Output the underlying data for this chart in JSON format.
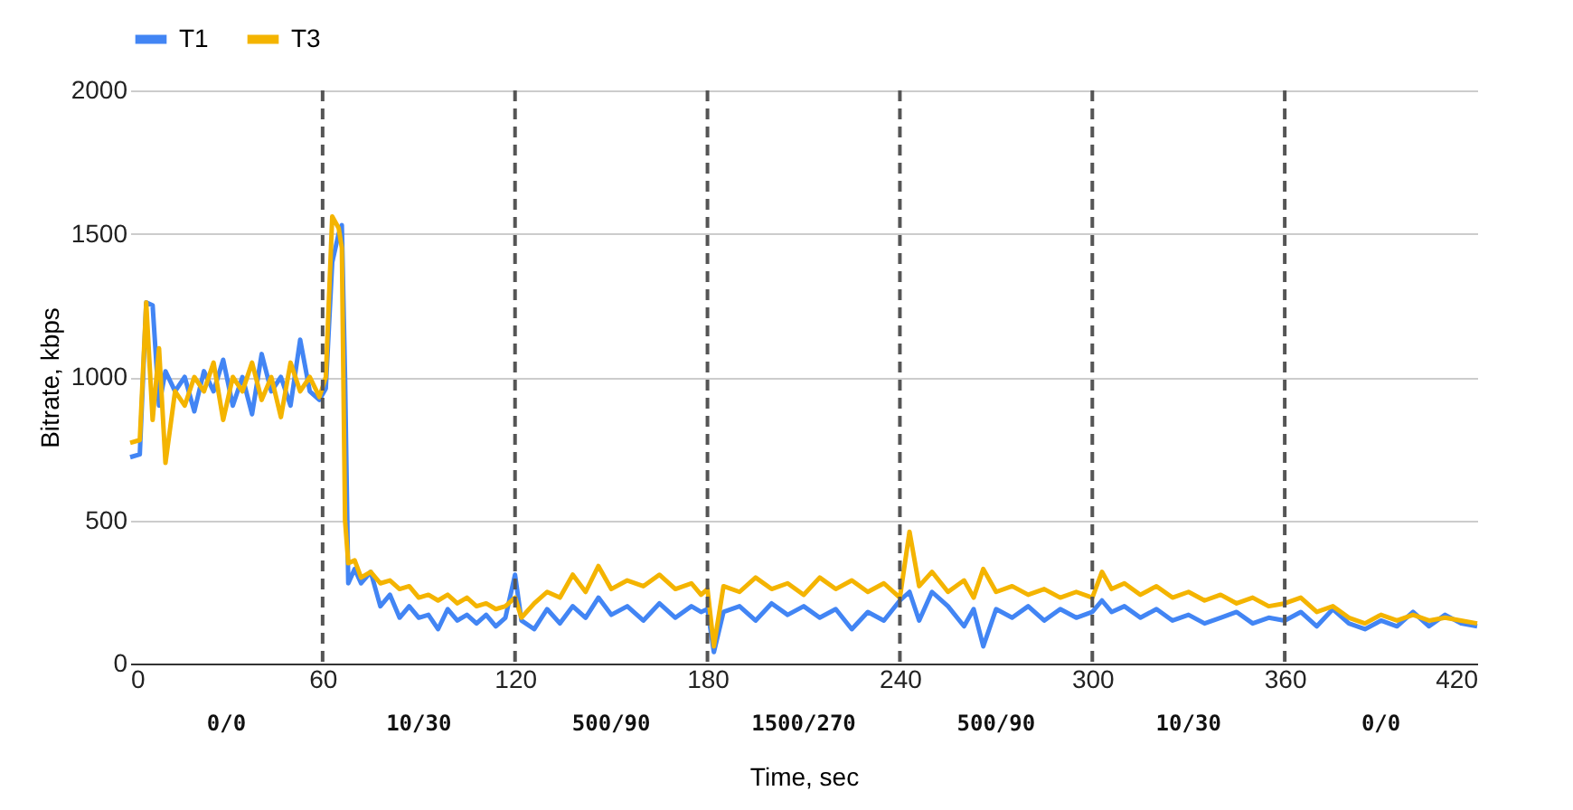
{
  "chart_data": {
    "type": "line",
    "xlabel": "Time, sec",
    "ylabel": "Bitrate, kbps",
    "x": [
      0,
      3,
      5,
      7,
      9,
      11,
      14,
      17,
      20,
      23,
      26,
      29,
      32,
      35,
      38,
      41,
      44,
      47,
      50,
      53,
      56,
      59,
      61,
      63,
      65,
      66,
      67,
      68,
      70,
      72,
      75,
      78,
      81,
      84,
      87,
      90,
      93,
      96,
      99,
      102,
      105,
      108,
      111,
      114,
      117,
      120,
      122,
      126,
      130,
      134,
      138,
      142,
      146,
      150,
      155,
      160,
      165,
      170,
      175,
      178,
      180,
      182,
      185,
      190,
      195,
      200,
      205,
      210,
      215,
      220,
      225,
      230,
      235,
      240,
      243,
      246,
      250,
      255,
      260,
      263,
      266,
      270,
      275,
      280,
      285,
      290,
      295,
      300,
      303,
      306,
      310,
      315,
      320,
      325,
      330,
      335,
      340,
      345,
      350,
      355,
      360,
      365,
      370,
      375,
      380,
      385,
      390,
      395,
      400,
      405,
      410,
      415,
      420
    ],
    "series": [
      {
        "name": "T1",
        "color": "#4285f4",
        "values": [
          720,
          730,
          1260,
          1250,
          900,
          1020,
          950,
          1000,
          880,
          1020,
          950,
          1060,
          900,
          1000,
          870,
          1080,
          950,
          1000,
          900,
          1130,
          950,
          920,
          960,
          1400,
          1500,
          1530,
          1000,
          280,
          330,
          280,
          320,
          200,
          240,
          160,
          200,
          160,
          170,
          120,
          190,
          150,
          170,
          140,
          170,
          130,
          160,
          310,
          150,
          120,
          190,
          140,
          200,
          160,
          230,
          170,
          200,
          150,
          210,
          160,
          200,
          180,
          190,
          40,
          180,
          200,
          150,
          210,
          170,
          200,
          160,
          190,
          120,
          180,
          150,
          220,
          250,
          150,
          250,
          200,
          130,
          190,
          60,
          190,
          160,
          200,
          150,
          190,
          160,
          180,
          220,
          180,
          200,
          160,
          190,
          150,
          170,
          140,
          160,
          180,
          140,
          160,
          150,
          180,
          130,
          190,
          140,
          120,
          150,
          130,
          180,
          130,
          170,
          140,
          130
        ]
      },
      {
        "name": "T3",
        "color": "#f4b400",
        "values": [
          770,
          780,
          1260,
          850,
          1100,
          700,
          950,
          900,
          1000,
          950,
          1050,
          850,
          1000,
          950,
          1050,
          920,
          1000,
          860,
          1050,
          950,
          1000,
          930,
          1000,
          1560,
          1520,
          1450,
          500,
          350,
          360,
          300,
          320,
          280,
          290,
          260,
          270,
          230,
          240,
          220,
          240,
          210,
          230,
          200,
          210,
          190,
          200,
          230,
          160,
          210,
          250,
          230,
          310,
          250,
          340,
          260,
          290,
          270,
          310,
          260,
          280,
          240,
          260,
          60,
          270,
          250,
          300,
          260,
          280,
          240,
          300,
          260,
          290,
          250,
          280,
          230,
          460,
          270,
          320,
          250,
          290,
          230,
          330,
          250,
          270,
          240,
          260,
          230,
          250,
          230,
          320,
          260,
          280,
          240,
          270,
          230,
          250,
          220,
          240,
          210,
          230,
          200,
          210,
          230,
          180,
          200,
          160,
          140,
          170,
          150,
          170,
          150,
          160,
          150,
          140
        ]
      }
    ],
    "xlim": [
      0,
      420
    ],
    "xticks": [
      0,
      60,
      120,
      180,
      240,
      300,
      360,
      420
    ],
    "ylim": [
      0,
      2000
    ],
    "yticks": [
      0,
      500,
      1000,
      1500,
      2000
    ],
    "grid": "y",
    "legend": "top",
    "line_style": "solid",
    "marker": "none",
    "ref_lines": [
      {
        "axis": "x",
        "value": 60,
        "color": "#555555",
        "line_style": "dashed"
      },
      {
        "axis": "x",
        "value": 120,
        "color": "#555555",
        "line_style": "dashed"
      },
      {
        "axis": "x",
        "value": 180,
        "color": "#555555",
        "line_style": "dashed"
      },
      {
        "axis": "x",
        "value": 240,
        "color": "#555555",
        "line_style": "dashed"
      },
      {
        "axis": "x",
        "value": 300,
        "color": "#555555",
        "line_style": "dashed"
      },
      {
        "axis": "x",
        "value": 360,
        "color": "#555555",
        "line_style": "dashed"
      }
    ],
    "annotations": [
      "0/0",
      "10/30",
      "500/90",
      "1500/270",
      "500/90",
      "10/30",
      "0/0"
    ]
  }
}
